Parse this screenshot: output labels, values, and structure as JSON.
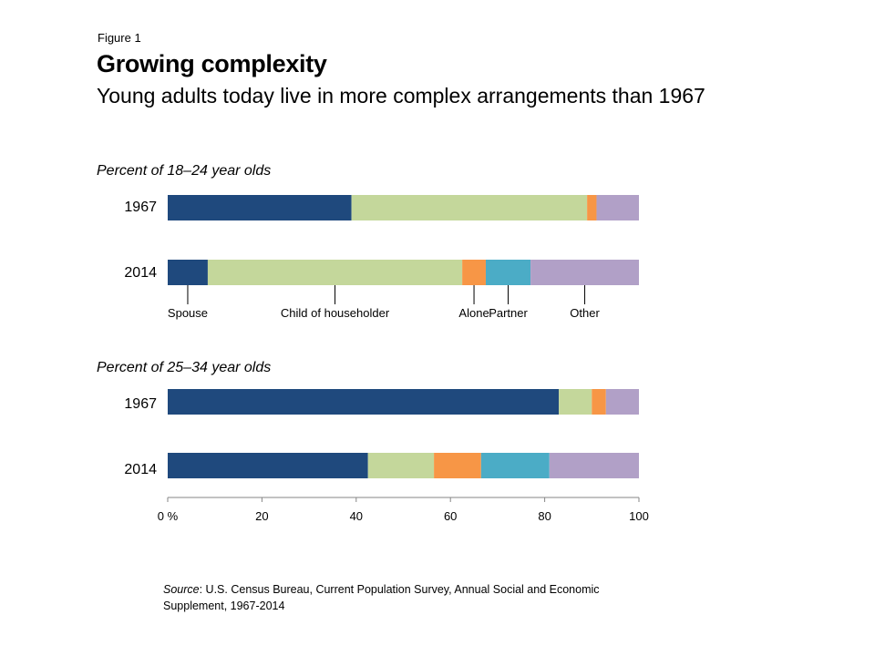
{
  "figure": {
    "label": "Figure 1",
    "title": "Growing complexity",
    "subtitle": "Young adults today live in more complex arrangements than 1967"
  },
  "source": {
    "prefix": "Source",
    "text": ": U.S. Census Bureau, Current Population Survey, Annual Social and Economic Supplement, 1967-2014"
  },
  "chart_data": {
    "type": "bar",
    "stacked": true,
    "orientation": "horizontal",
    "categories_order": [
      "Spouse",
      "Child of householder",
      "Alone",
      "Partner",
      "Other"
    ],
    "category_labels": [
      "Spouse",
      "Child of householder",
      "Alone",
      "Partner",
      "Other"
    ],
    "colors": {
      "Spouse": "#1f497d",
      "Child of householder": "#c4d79b",
      "Alone": "#f79646",
      "Partner": "#4bacc6",
      "Other": "#b1a0c7"
    },
    "panels": [
      {
        "title": "Percent of 18–24 year olds",
        "rows": [
          {
            "label": "1967",
            "values": [
              39,
              50,
              2,
              0,
              9
            ]
          },
          {
            "label": "2014",
            "values": [
              8.5,
              54,
              5,
              9.5,
              23
            ]
          }
        ]
      },
      {
        "title": "Percent of 25–34 year olds",
        "rows": [
          {
            "label": "1967",
            "values": [
              83,
              7,
              3,
              0,
              7
            ]
          },
          {
            "label": "2014",
            "values": [
              42.5,
              14,
              10,
              14.5,
              19
            ]
          }
        ]
      }
    ],
    "xlim": [
      0,
      100
    ],
    "x_ticks": [
      0,
      20,
      40,
      60,
      80,
      100
    ],
    "x_tick_labels": [
      "0 %",
      "20",
      "40",
      "60",
      "80",
      "100"
    ]
  }
}
